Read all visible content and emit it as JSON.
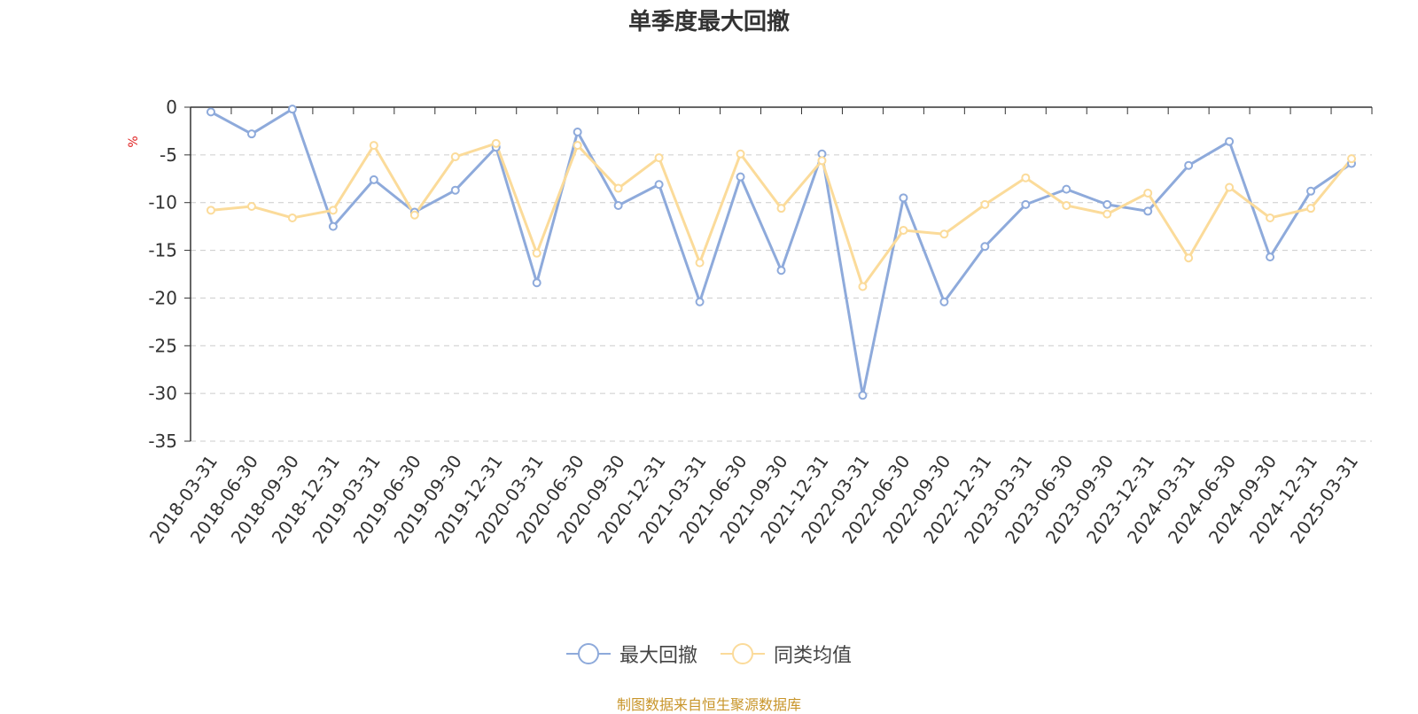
{
  "chart_data": {
    "type": "line",
    "title": "单季度最大回撤",
    "ylabel": "%",
    "ylim": [
      -35,
      0
    ],
    "yticks": [
      0,
      -5,
      -10,
      -15,
      -20,
      -25,
      -30,
      -35
    ],
    "grid": true,
    "legend_position": "bottom",
    "categories": [
      "2018-03-31",
      "2018-06-30",
      "2018-09-30",
      "2018-12-31",
      "2019-03-31",
      "2019-06-30",
      "2019-09-30",
      "2019-12-31",
      "2020-03-31",
      "2020-06-30",
      "2020-09-30",
      "2020-12-31",
      "2021-03-31",
      "2021-06-30",
      "2021-09-30",
      "2021-12-31",
      "2022-03-31",
      "2022-06-30",
      "2022-09-30",
      "2022-12-31",
      "2023-03-31",
      "2023-06-30",
      "2023-09-30",
      "2023-12-31",
      "2024-03-31",
      "2024-06-30",
      "2024-09-30",
      "2024-12-31",
      "2025-03-31"
    ],
    "series": [
      {
        "name": "最大回撤",
        "color": "#8eaadb",
        "values": [
          -0.5,
          -2.8,
          -0.2,
          -12.5,
          -7.6,
          -11.0,
          -8.7,
          -4.2,
          -18.4,
          -2.6,
          -10.3,
          -8.1,
          -20.4,
          -7.3,
          -17.1,
          -4.9,
          -30.2,
          -9.5,
          -20.4,
          -14.6,
          -10.2,
          -8.6,
          -10.2,
          -10.9,
          -6.1,
          -3.6,
          -15.7,
          -8.8,
          -5.9
        ]
      },
      {
        "name": "同类均值",
        "color": "#fbdb9a",
        "values": [
          -10.8,
          -10.4,
          -11.6,
          -10.8,
          -4.0,
          -11.3,
          -5.2,
          -3.8,
          -15.3,
          -4.0,
          -8.5,
          -5.3,
          -16.3,
          -4.9,
          -10.6,
          -5.6,
          -18.8,
          -12.9,
          -13.3,
          -10.2,
          -7.4,
          -10.3,
          -11.2,
          -9.0,
          -15.8,
          -8.4,
          -11.6,
          -10.6,
          -5.4
        ]
      }
    ]
  },
  "source_note": "制图数据来自恒生聚源数据库"
}
